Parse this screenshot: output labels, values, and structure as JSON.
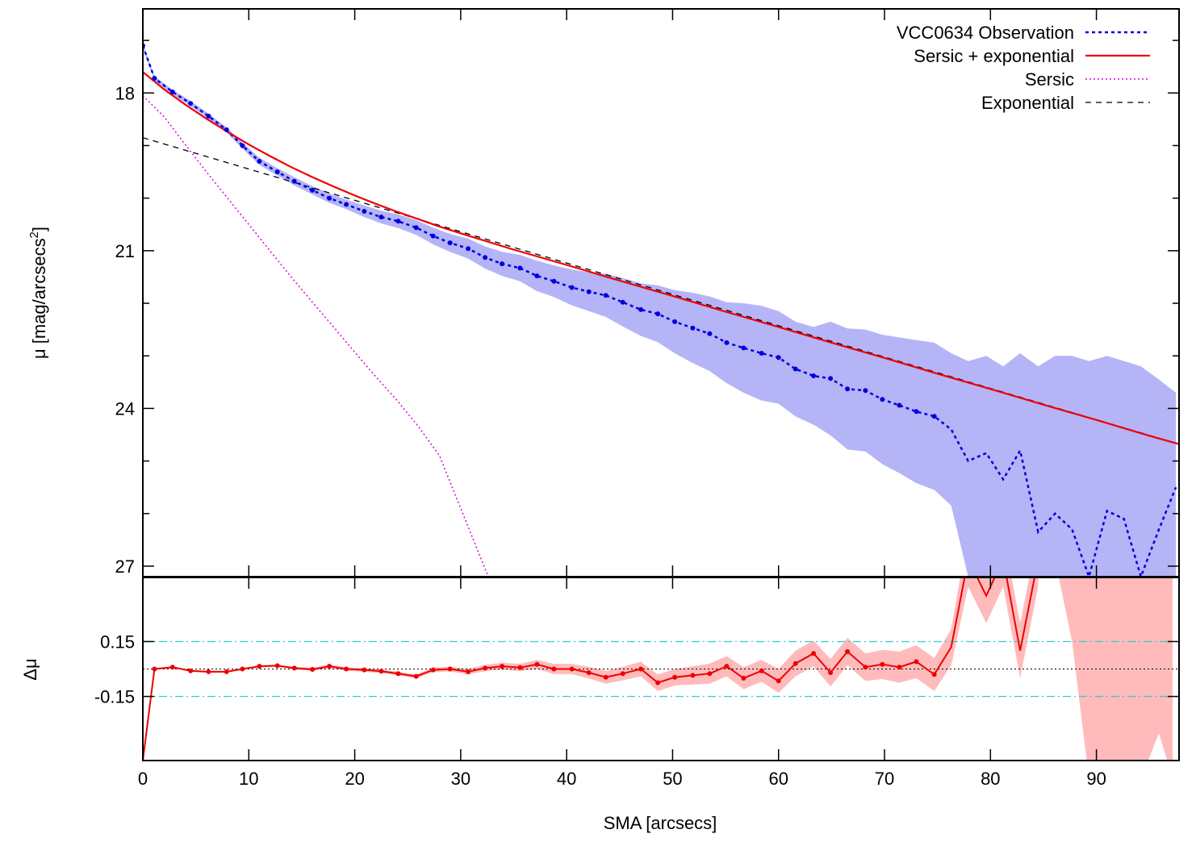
{
  "chart_data": {
    "type": "line",
    "colors": {
      "observation": "#0000dd",
      "band": "#b4b4f7",
      "total": "#ee0000",
      "sersic": "#dd00dd",
      "exponential": "#000000",
      "residual": "#ee0000",
      "residual_band": "#ffbbbb",
      "threshold": "#33cccc"
    },
    "top_panel": {
      "ylabel": "μ [mag/arcsecs",
      "ylabel_sup": "2",
      "ylabel_end": "]",
      "ylim": [
        16.4,
        27.2
      ],
      "y_inverted": true,
      "yticks": [
        18,
        21,
        24,
        27
      ],
      "yticks_minor": [
        17,
        19,
        20,
        22,
        23,
        25,
        26
      ],
      "legend_position": "top-right",
      "legend": [
        {
          "label": "VCC0634 Observation",
          "style": "dotted",
          "color": "#0000dd"
        },
        {
          "label": "Sersic + exponential",
          "style": "solid",
          "color": "#ee0000"
        },
        {
          "label": "Sersic",
          "style": "dotted",
          "color": "#dd00dd"
        },
        {
          "label": "Exponential",
          "style": "dashed",
          "color": "#000000"
        }
      ],
      "observation": {
        "x": [
          0,
          1.1,
          2.8,
          4.5,
          6.2,
          7.9,
          9.4,
          11,
          12.7,
          14.3,
          16,
          17.6,
          19.2,
          20.9,
          22.5,
          24.1,
          25.8,
          27.4,
          29,
          30.7,
          32.3,
          33.9,
          35.6,
          37.2,
          38.8,
          40.5,
          42.1,
          43.7,
          45.3,
          47,
          48.6,
          50.2,
          51.9,
          53.5,
          55.1,
          56.7,
          58.4,
          60,
          61.6,
          63.3,
          64.9,
          66.5,
          68.2,
          69.8,
          71.4,
          73,
          74.7,
          76.3,
          77.9,
          79.6,
          81.2,
          82.8,
          84.5,
          86.1,
          87.7,
          89.3,
          91,
          92.6,
          94.2,
          95.9,
          97.5
        ],
        "y": [
          17.1,
          17.72,
          17.98,
          18.2,
          18.44,
          18.7,
          19,
          19.3,
          19.5,
          19.68,
          19.85,
          20,
          20.12,
          20.25,
          20.36,
          20.44,
          20.56,
          20.72,
          20.85,
          20.96,
          21.13,
          21.25,
          21.33,
          21.48,
          21.58,
          21.7,
          21.78,
          21.85,
          21.98,
          22.12,
          22.2,
          22.35,
          22.47,
          22.58,
          22.75,
          22.85,
          22.95,
          23.03,
          23.25,
          23.38,
          23.43,
          23.63,
          23.66,
          23.83,
          23.94,
          24.06,
          24.15,
          24.4,
          25.0,
          24.85,
          25.35,
          24.8,
          26.35,
          26.0,
          26.3,
          27.2,
          25.95,
          26.1,
          27.2,
          26.3,
          25.5
        ],
        "band_low": [
          17.05,
          17.68,
          17.94,
          18.15,
          18.39,
          18.65,
          18.94,
          19.23,
          19.43,
          19.6,
          19.77,
          19.91,
          20.03,
          20.14,
          20.24,
          20.31,
          20.42,
          20.56,
          20.68,
          20.77,
          20.92,
          21.02,
          21.08,
          21.19,
          21.28,
          21.36,
          21.41,
          21.44,
          21.52,
          21.62,
          21.66,
          21.75,
          21.8,
          21.87,
          21.98,
          22.0,
          22.05,
          22.15,
          22.35,
          22.45,
          22.35,
          22.48,
          22.5,
          22.6,
          22.65,
          22.7,
          22.75,
          22.95,
          23.1,
          23.0,
          23.2,
          22.95,
          23.2,
          23.0,
          23.0,
          23.1,
          23.0,
          23.1,
          23.2,
          23.45,
          23.7
        ],
        "band_high": [
          17.15,
          17.76,
          18.02,
          18.25,
          18.49,
          18.75,
          19.06,
          19.37,
          19.57,
          19.76,
          19.93,
          20.09,
          20.21,
          20.36,
          20.48,
          20.57,
          20.7,
          20.88,
          21.02,
          21.15,
          21.34,
          21.48,
          21.58,
          21.77,
          21.88,
          22.04,
          22.15,
          22.26,
          22.44,
          22.62,
          22.74,
          22.95,
          23.14,
          23.29,
          23.52,
          23.7,
          23.85,
          23.91,
          24.15,
          24.31,
          24.51,
          24.78,
          24.82,
          25.06,
          25.23,
          25.42,
          25.55,
          25.85,
          27.2,
          27.2,
          27.2,
          27.2,
          27.2,
          27.2,
          27.2,
          27.2,
          27.2,
          27.2,
          27.2,
          27.2,
          27.2
        ]
      },
      "total": {
        "x": [
          0,
          2,
          4,
          6,
          8,
          10,
          12,
          14,
          16,
          18,
          20,
          22,
          24,
          26,
          28,
          30,
          35,
          40,
          45,
          50,
          55,
          60,
          65,
          70,
          75,
          80,
          85,
          90,
          95,
          97.8
        ],
        "y": [
          17.6,
          17.93,
          18.22,
          18.49,
          18.74,
          18.98,
          19.2,
          19.41,
          19.6,
          19.78,
          19.95,
          20.11,
          20.26,
          20.4,
          20.54,
          20.67,
          20.98,
          21.27,
          21.57,
          21.86,
          22.16,
          22.45,
          22.75,
          23.04,
          23.34,
          23.63,
          23.93,
          24.22,
          24.52,
          24.68
        ]
      },
      "sersic": {
        "x": [
          0,
          2,
          4,
          6,
          8,
          10,
          12,
          14,
          16,
          18,
          20,
          22,
          24,
          26,
          28,
          30,
          32.6
        ],
        "y": [
          18.05,
          18.45,
          18.98,
          19.5,
          20.0,
          20.5,
          21.0,
          21.5,
          21.98,
          22.45,
          22.93,
          23.4,
          23.85,
          24.34,
          24.9,
          25.9,
          27.2
        ]
      },
      "exponential": {
        "x": [
          0,
          97.8
        ],
        "y": [
          18.85,
          24.68
        ]
      }
    },
    "bottom_panel": {
      "xlabel": "SMA [arcsecs]",
      "ylabel": "Δμ",
      "ylim": [
        -0.5,
        0.5
      ],
      "y_inverted": true,
      "yticks": [
        0.15,
        -0.15
      ],
      "thresholds": [
        0.15,
        -0.15
      ],
      "residual": {
        "x": [
          0,
          1.1,
          2.8,
          4.5,
          6.2,
          7.9,
          9.4,
          11,
          12.7,
          14.3,
          16,
          17.6,
          19.2,
          20.9,
          22.5,
          24.1,
          25.8,
          27.4,
          29,
          30.7,
          32.3,
          33.9,
          35.6,
          37.2,
          38.8,
          40.5,
          42.1,
          43.7,
          45.3,
          47,
          48.6,
          50.2,
          51.9,
          53.5,
          55.1,
          56.7,
          58.4,
          60,
          61.6,
          63.3,
          64.9,
          66.5,
          68.2,
          69.8,
          71.4,
          73,
          74.7,
          76.3,
          77.9,
          79.6,
          81.2,
          82.8,
          84.5
        ],
        "y": [
          -0.5,
          0.0,
          0.01,
          -0.01,
          -0.015,
          -0.015,
          0.0,
          0.015,
          0.018,
          0.005,
          -0.002,
          0.015,
          0.0,
          -0.005,
          -0.012,
          -0.025,
          -0.04,
          -0.005,
          0.0,
          -0.015,
          0.005,
          0.015,
          0.008,
          0.025,
          0.0,
          0.0,
          -0.02,
          -0.045,
          -0.025,
          0.0,
          -0.075,
          -0.045,
          -0.035,
          -0.025,
          0.015,
          -0.05,
          -0.01,
          -0.065,
          0.03,
          0.085,
          -0.02,
          0.095,
          0.01,
          0.025,
          0.01,
          0.04,
          -0.03,
          0.12,
          0.6,
          0.4,
          0.6,
          0.1,
          0.6
        ],
        "band_low": [
          -0.5,
          -0.005,
          0.005,
          -0.015,
          -0.02,
          -0.02,
          -0.005,
          0.01,
          0.012,
          -0.002,
          -0.01,
          0.005,
          -0.01,
          -0.015,
          -0.022,
          -0.035,
          -0.05,
          -0.018,
          -0.013,
          -0.03,
          -0.012,
          -0.004,
          -0.012,
          0.0,
          -0.028,
          -0.028,
          -0.052,
          -0.08,
          -0.062,
          -0.04,
          -0.12,
          -0.09,
          -0.085,
          -0.08,
          -0.04,
          -0.11,
          -0.07,
          -0.13,
          -0.04,
          0.015,
          -0.095,
          0.02,
          -0.065,
          -0.055,
          -0.075,
          -0.05,
          -0.12,
          0.02,
          0.45,
          0.25,
          0.45,
          -0.05,
          0.45
        ],
        "band_high": [
          -0.5,
          0.005,
          0.015,
          -0.005,
          -0.01,
          -0.01,
          0.005,
          0.02,
          0.024,
          0.012,
          0.006,
          0.025,
          0.01,
          0.005,
          -0.002,
          -0.015,
          -0.03,
          0.008,
          0.013,
          0.0,
          0.022,
          0.034,
          0.028,
          0.05,
          0.028,
          0.028,
          0.012,
          -0.01,
          0.012,
          0.04,
          -0.03,
          0.0,
          0.015,
          0.03,
          0.07,
          0.01,
          0.05,
          0.0,
          0.1,
          0.155,
          0.055,
          0.17,
          0.085,
          0.105,
          0.095,
          0.13,
          0.06,
          0.22,
          0.75,
          0.55,
          0.75,
          0.25,
          0.75
        ]
      },
      "residual_band_tail": {
        "x": [
          86.1,
          87.7,
          89.3,
          91,
          92.6,
          94.2,
          95.9,
          97.2
        ],
        "band_low": [
          0.6,
          0.15,
          -0.6,
          -0.6,
          -0.6,
          -0.6,
          -0.35,
          -0.6
        ],
        "band_high": [
          0.6,
          0.6,
          0.6,
          0.6,
          0.6,
          0.6,
          0.6,
          0.6
        ]
      }
    },
    "xlim": [
      0,
      97.8
    ],
    "xticks": [
      0,
      10,
      20,
      30,
      40,
      50,
      60,
      70,
      80,
      90
    ],
    "xtick_labels": [
      "0",
      "10",
      "20",
      "30",
      "40",
      "50",
      "60",
      "70",
      "80",
      "90"
    ],
    "ytick_labels_top": [
      "18",
      "21",
      "24",
      "27"
    ],
    "ytick_labels_bottom": [
      "0.15",
      "-0.15"
    ]
  }
}
